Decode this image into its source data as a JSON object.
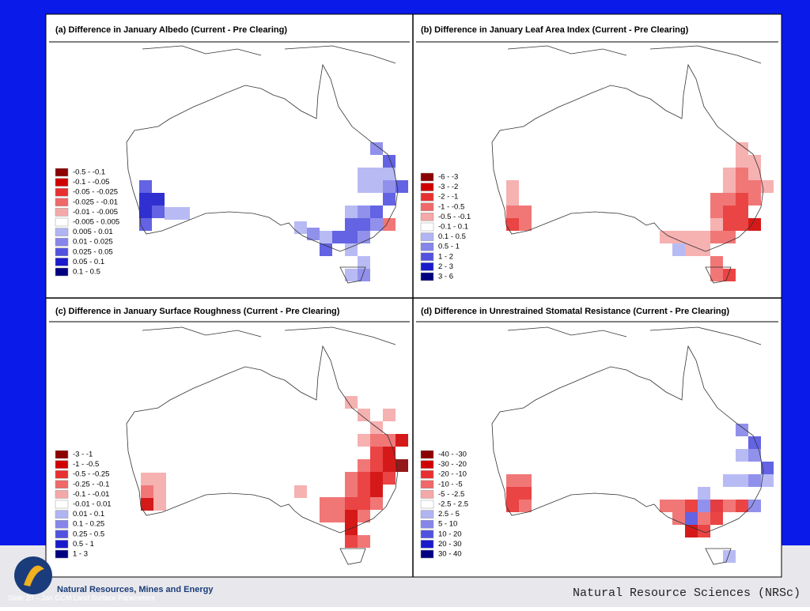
{
  "panels": [
    {
      "title": "(a) Difference in January Albedo (Current - Pre Clearing)",
      "legend": [
        {
          "label": "-0.5 - -0.1",
          "color": "#8b0000"
        },
        {
          "label": "-0.1 - -0.05",
          "color": "#d00000"
        },
        {
          "label": "-0.05 - -0.025",
          "color": "#e83030"
        },
        {
          "label": "-0.025 - -0.01",
          "color": "#f06868"
        },
        {
          "label": "-0.01 - -0.005",
          "color": "#f5a8a8"
        },
        {
          "label": "-0.005 - 0.005",
          "color": "#ffffff"
        },
        {
          "label": "0.005 - 0.01",
          "color": "#b0b4f2"
        },
        {
          "label": "0.01 - 0.025",
          "color": "#8585ea"
        },
        {
          "label": "0.025 - 0.05",
          "color": "#5252e0"
        },
        {
          "label": "0.05 - 0.1",
          "color": "#1a1acc"
        },
        {
          "label": "0.1 - 0.5",
          "color": "#000080"
        }
      ]
    },
    {
      "title": "(b) Difference in January Leaf Area Index (Current - Pre Clearing)",
      "legend": [
        {
          "label": "-6 - -3",
          "color": "#8b0000"
        },
        {
          "label": "-3 - -2",
          "color": "#d00000"
        },
        {
          "label": "-2 - -1",
          "color": "#e83030"
        },
        {
          "label": "-1 - -0.5",
          "color": "#f06868"
        },
        {
          "label": "-0.5 - -0.1",
          "color": "#f5a8a8"
        },
        {
          "label": "-0.1 - 0.1",
          "color": "#ffffff"
        },
        {
          "label": "0.1 - 0.5",
          "color": "#b0b4f2"
        },
        {
          "label": "0.5 - 1",
          "color": "#8585ea"
        },
        {
          "label": "1 - 2",
          "color": "#5252e0"
        },
        {
          "label": "2 - 3",
          "color": "#1a1acc"
        },
        {
          "label": "3 - 6",
          "color": "#000080"
        }
      ]
    },
    {
      "title": "(c) Difference in January Surface Roughness (Current - Pre Clearing)",
      "legend": [
        {
          "label": "-3 - -1",
          "color": "#8b0000"
        },
        {
          "label": "-1 - -0.5",
          "color": "#d00000"
        },
        {
          "label": "-0.5 - -0.25",
          "color": "#e83030"
        },
        {
          "label": "-0.25 - -0.1",
          "color": "#f06868"
        },
        {
          "label": "-0.1 - -0.01",
          "color": "#f5a8a8"
        },
        {
          "label": "-0.01 - 0.01",
          "color": "#ffffff"
        },
        {
          "label": "0.01 - 0.1",
          "color": "#b0b4f2"
        },
        {
          "label": "0.1 - 0.25",
          "color": "#8585ea"
        },
        {
          "label": "0.25 - 0.5",
          "color": "#5252e0"
        },
        {
          "label": "0.5 - 1",
          "color": "#1a1acc"
        },
        {
          "label": "1 - 3",
          "color": "#000080"
        }
      ]
    },
    {
      "title": "(d) Difference in Unrestrained Stomatal Resistance (Current - Pre Clearing)",
      "legend": [
        {
          "label": "-40 - -30",
          "color": "#8b0000"
        },
        {
          "label": "-30 - -20",
          "color": "#d00000"
        },
        {
          "label": "-20 - -10",
          "color": "#e83030"
        },
        {
          "label": "-10 - -5",
          "color": "#f06868"
        },
        {
          "label": "-5 - -2.5",
          "color": "#f5a8a8"
        },
        {
          "label": "-2.5 - 2.5",
          "color": "#ffffff"
        },
        {
          "label": "2.5 - 5",
          "color": "#b0b4f2"
        },
        {
          "label": "5 - 10",
          "color": "#8585ea"
        },
        {
          "label": "10 - 20",
          "color": "#5252e0"
        },
        {
          "label": "20 - 30",
          "color": "#1a1acc"
        },
        {
          "label": "30 - 40",
          "color": "#000080"
        }
      ]
    }
  ],
  "footer": {
    "org": "Natural Resources, Mines and Energy",
    "slide": "Slide 20 – Jan GCM Land Surface Parameters",
    "right": "Natural Resource Sciences (NRSc)"
  }
}
